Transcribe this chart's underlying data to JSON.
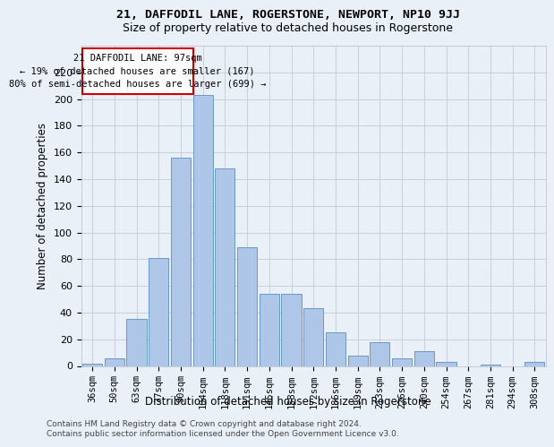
{
  "title1": "21, DAFFODIL LANE, ROGERSTONE, NEWPORT, NP10 9JJ",
  "title2": "Size of property relative to detached houses in Rogerstone",
  "xlabel": "Distribution of detached houses by size in Rogerstone",
  "ylabel": "Number of detached properties",
  "categories": [
    "36sqm",
    "50sqm",
    "63sqm",
    "77sqm",
    "90sqm",
    "104sqm",
    "118sqm",
    "131sqm",
    "145sqm",
    "158sqm",
    "172sqm",
    "186sqm",
    "199sqm",
    "213sqm",
    "226sqm",
    "240sqm",
    "254sqm",
    "267sqm",
    "281sqm",
    "294sqm",
    "308sqm"
  ],
  "values": [
    2,
    6,
    35,
    81,
    156,
    203,
    148,
    89,
    54,
    54,
    43,
    25,
    8,
    18,
    6,
    11,
    3,
    0,
    1,
    0,
    3
  ],
  "bar_color": "#aec6e8",
  "bar_edge_color": "#5a8fc0",
  "annotation_line1": "21 DAFFODIL LANE: 97sqm",
  "annotation_line2": "← 19% of detached houses are smaller (167)",
  "annotation_line3": "80% of semi-detached houses are larger (699) →",
  "footer1": "Contains HM Land Registry data © Crown copyright and database right 2024.",
  "footer2": "Contains public sector information licensed under the Open Government Licence v3.0.",
  "bg_color": "#eaf0f8",
  "plot_bg_color": "#eaf0f8",
  "annotation_box_color": "#ffffff",
  "annotation_box_edge": "#cc0000",
  "ylim": [
    0,
    240
  ],
  "yticks": [
    0,
    20,
    40,
    60,
    80,
    100,
    120,
    140,
    160,
    180,
    200,
    220
  ],
  "grid_color": "#c8d0dc",
  "title1_fontsize": 9.5,
  "title2_fontsize": 9,
  "ylabel_fontsize": 8.5,
  "xlabel_fontsize": 8.5,
  "tick_fontsize": 7.5,
  "ytick_fontsize": 8,
  "footer_fontsize": 6.5
}
